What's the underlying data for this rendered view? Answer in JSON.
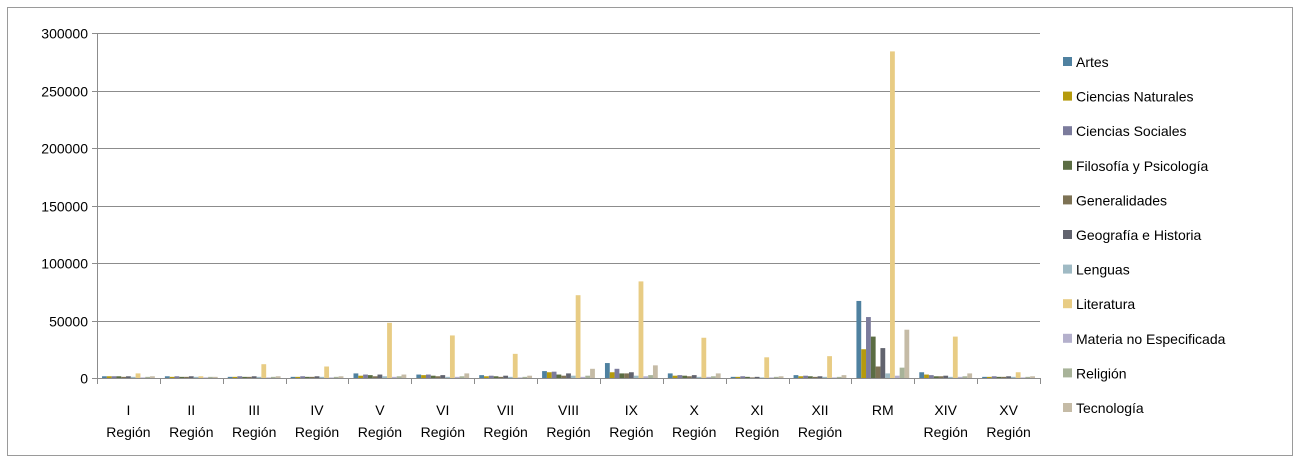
{
  "chart_data": {
    "type": "bar",
    "title": "",
    "xlabel": "",
    "ylabel": "",
    "ylim": [
      0,
      300000
    ],
    "yticks": [
      0,
      50000,
      100000,
      150000,
      200000,
      250000,
      300000
    ],
    "ytick_labels": [
      "0",
      "50000",
      "100000",
      "150000",
      "200000",
      "250000",
      "300000"
    ],
    "grid": true,
    "legend_position": "right",
    "categories": [
      [
        "I",
        "Región"
      ],
      [
        "II",
        "Región"
      ],
      [
        "III",
        "Región"
      ],
      [
        "IV",
        "Región"
      ],
      [
        "V",
        "Región"
      ],
      [
        "VI",
        "Región"
      ],
      [
        "VII",
        "Región"
      ],
      [
        "VIII",
        "Región"
      ],
      [
        "IX",
        "Región"
      ],
      [
        "X",
        "Región"
      ],
      [
        "XI",
        "Región"
      ],
      [
        "XII",
        "Región"
      ],
      [
        "RM"
      ],
      [
        "XIV",
        "Región"
      ],
      [
        "XV",
        "Región"
      ]
    ],
    "series": [
      {
        "name": "Artes",
        "color": "#4f81a0",
        "values": [
          1500,
          1500,
          1000,
          1000,
          4000,
          3000,
          2500,
          6000,
          13000,
          4000,
          1000,
          2500,
          67000,
          5000,
          1000
        ]
      },
      {
        "name": "Ciencias Naturales",
        "color": "#b59a0c",
        "values": [
          1500,
          1000,
          1000,
          1000,
          2000,
          2500,
          1500,
          5000,
          5000,
          2000,
          1000,
          1500,
          25000,
          3000,
          1000
        ]
      },
      {
        "name": "Ciencias Sociales",
        "color": "#7b7b9c",
        "values": [
          1500,
          1500,
          1500,
          1500,
          3000,
          3000,
          2000,
          5500,
          8000,
          2500,
          1500,
          2000,
          53000,
          2500,
          1500
        ]
      },
      {
        "name": "Filosofía y Psicología",
        "color": "#5b6d43",
        "values": [
          1500,
          1000,
          1000,
          1000,
          2500,
          2000,
          1500,
          3000,
          4000,
          2000,
          1000,
          1500,
          36000,
          1500,
          1000
        ]
      },
      {
        "name": "Generalidades",
        "color": "#7d7254",
        "values": [
          1000,
          1000,
          1000,
          1000,
          1500,
          1500,
          1000,
          2000,
          4000,
          1500,
          500,
          1000,
          10000,
          1500,
          1000
        ]
      },
      {
        "name": "Geografía e Historia",
        "color": "#61636e",
        "values": [
          1500,
          1500,
          1500,
          1500,
          3000,
          2500,
          2000,
          4000,
          5000,
          2500,
          1000,
          1500,
          26000,
          2000,
          1500
        ]
      },
      {
        "name": "Lenguas",
        "color": "#9fbac4",
        "values": [
          1000,
          1000,
          1000,
          1000,
          1500,
          1000,
          1000,
          2000,
          2000,
          1000,
          500,
          1000,
          4000,
          1000,
          1000
        ]
      },
      {
        "name": "Literatura",
        "color": "#e8cc84",
        "values": [
          4000,
          1500,
          12000,
          10000,
          48000,
          37000,
          21000,
          72000,
          84000,
          35000,
          18000,
          19000,
          284000,
          36000,
          5000
        ]
      },
      {
        "name": "Materia no Especificada",
        "color": "#b4b0cc",
        "values": [
          500,
          500,
          500,
          500,
          1000,
          1000,
          500,
          1000,
          1500,
          1000,
          500,
          500,
          2000,
          1000,
          500
        ]
      },
      {
        "name": "Religión",
        "color": "#a8b399",
        "values": [
          1000,
          1000,
          1000,
          1000,
          1500,
          1500,
          1000,
          2000,
          2500,
          1500,
          1000,
          1000,
          9000,
          1500,
          1000
        ]
      },
      {
        "name": "Tecnología",
        "color": "#c5bba6",
        "values": [
          1500,
          1000,
          1500,
          1500,
          3000,
          4000,
          2000,
          8000,
          11000,
          4000,
          1500,
          2500,
          42000,
          4000,
          1500
        ]
      }
    ]
  }
}
